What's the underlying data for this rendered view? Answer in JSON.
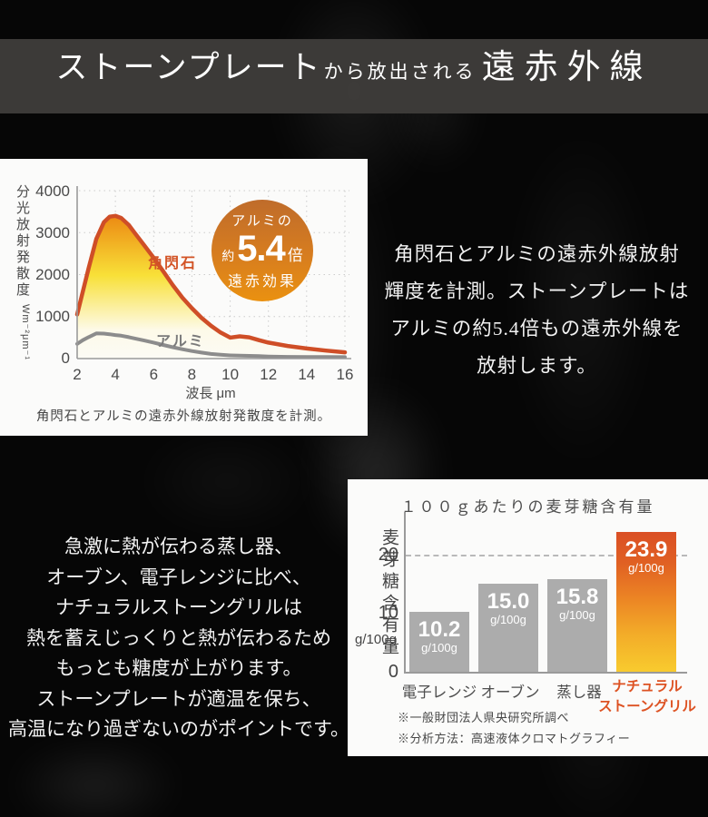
{
  "header": {
    "title_main": "ストーンプレート",
    "title_connector": "から放出される",
    "title_accent": "遠赤外線"
  },
  "ir_chart": {
    "y_axis_label": "分光放射発散度",
    "y_axis_unit": "Wm⁻²μm⁻¹",
    "y_ticks": [
      "4000",
      "3000",
      "2000",
      "1000",
      "0"
    ],
    "x_ticks": [
      "2",
      "4",
      "6",
      "8",
      "10",
      "12",
      "14",
      "16"
    ],
    "x_axis_label": "波長 μm",
    "series_hornblende_label": "角閃石",
    "series_aluminum_label": "アルミ",
    "badge": {
      "line1": "アルミの",
      "prefix": "約",
      "value": "5.4",
      "suffix": "倍",
      "line3": "遠赤効果"
    },
    "caption": "角閃石とアルミの遠赤外線放射発散度を計測。"
  },
  "ir_text": {
    "lines": [
      "角閃石とアルミの遠赤外線放射",
      "輝度を計測。ストーンプレートは",
      "アルミの約5.4倍もの遠赤外線を",
      "放射します。"
    ]
  },
  "maltose_text": {
    "lines": [
      "急激に熱が伝わる蒸し器、",
      "オーブン、電子レンジに比べ、",
      "ナチュラルストーングリルは",
      "熱を蓄えじっくりと熱が伝わるため",
      "もっとも糖度が上がります。",
      "ストーンプレートが適温を保ち、",
      "高温になり過ぎないのがポイントです。"
    ]
  },
  "maltose_chart": {
    "title": "１００ｇあたりの麦芽糖含有量",
    "y_axis_label": "麦芽糖含有量",
    "y_axis_unit": "g/100g",
    "y_ticks": [
      "20",
      "10",
      "0"
    ],
    "bars": [
      {
        "label": "電子レンジ",
        "value": "10.2",
        "unit": "g/100g"
      },
      {
        "label": "オーブン",
        "value": "15.0",
        "unit": "g/100g"
      },
      {
        "label": "蒸し器",
        "value": "15.8",
        "unit": "g/100g"
      },
      {
        "label_line1": "ナチュラル",
        "label_line2": "ストーングリル",
        "value": "23.9",
        "unit": "g/100g"
      }
    ],
    "footnotes": [
      "※一般財団法人県央研究所調べ",
      "※分析方法：高速液体クロマトグラフィー"
    ]
  },
  "colors": {
    "accent_orange": "#cf4e27",
    "curve_gray": "#8c8c8c",
    "bar_gray": "#acacac",
    "bar_orange_top": "#da4f25",
    "bar_orange_bottom": "#f8cb2e",
    "badge_top": "#bf6c2b",
    "badge_bottom": "#ea9110",
    "header_band": "#3e3c3a",
    "panel_bg": "#fbfbfa",
    "background": "#060606"
  },
  "chart_data": [
    {
      "type": "line",
      "title": "角閃石とアルミの遠赤外線放射発散度を計測。",
      "xlabel": "波長 μm",
      "ylabel": "分光放射発散度 Wm⁻²μm⁻¹",
      "xlim": [
        2,
        16
      ],
      "ylim": [
        0,
        4000
      ],
      "grid": true,
      "annotation": "アルミの約5.4倍 遠赤効果",
      "x": [
        2,
        2.3,
        2.6,
        3,
        3.4,
        3.7,
        4,
        4.3,
        4.7,
        5,
        5.5,
        6,
        6.5,
        7,
        7.5,
        8,
        8.5,
        9,
        9.5,
        10,
        10.5,
        11,
        11.5,
        12,
        13,
        14,
        15,
        16
      ],
      "series": [
        {
          "name": "角閃石",
          "values": [
            1050,
            1600,
            2150,
            2850,
            3250,
            3380,
            3400,
            3350,
            3180,
            3000,
            2700,
            2400,
            2080,
            1750,
            1450,
            1200,
            970,
            780,
            620,
            500,
            530,
            505,
            440,
            380,
            300,
            240,
            190,
            150
          ]
        },
        {
          "name": "アルミ",
          "values": [
            350,
            440,
            510,
            600,
            595,
            580,
            560,
            545,
            510,
            480,
            430,
            380,
            325,
            270,
            222,
            180,
            142,
            110,
            90,
            75,
            70,
            65,
            58,
            50,
            42,
            38,
            36,
            35
          ]
        }
      ]
    },
    {
      "type": "bar",
      "title": "１００ｇあたりの麦芽糖含有量",
      "categories": [
        "電子レンジ",
        "オーブン",
        "蒸し器",
        "ナチュラルストーングリル"
      ],
      "values": [
        10.2,
        15.0,
        15.8,
        23.9
      ],
      "ylabel": "麦芽糖含有量 g/100g",
      "ylim": [
        0,
        25
      ],
      "highlight_index": 3
    }
  ]
}
